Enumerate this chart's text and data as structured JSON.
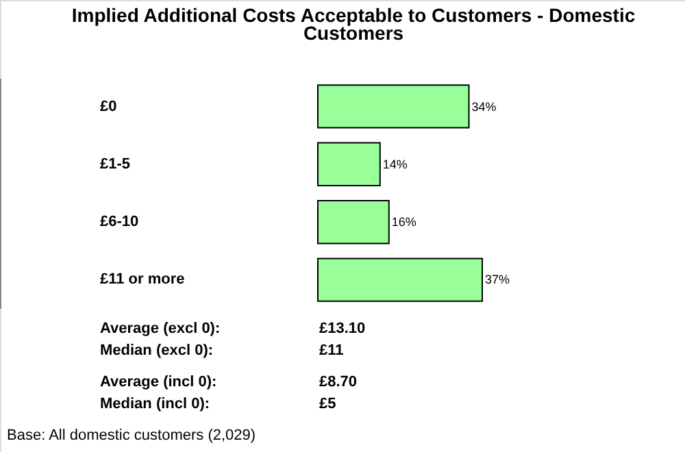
{
  "chart_data": {
    "type": "bar",
    "orientation": "horizontal",
    "title": "Implied Additional Costs Acceptable to Customers - Domestic Customers",
    "categories": [
      "£0",
      "£1-5",
      "£6-10",
      "£11 or more"
    ],
    "values": [
      34,
      14,
      16,
      37
    ],
    "color": "#99ff99",
    "value_labels": [
      "34%",
      "14%",
      "16%",
      "37%"
    ],
    "annotations": [
      "Average (excl 0):",
      "£13.10",
      "Median (excl 0):",
      "£11",
      "Average (incl 0):",
      "£8.70",
      "Median (incl 0):",
      "£5",
      "Base: All domestic customers (2,029)"
    ]
  }
}
